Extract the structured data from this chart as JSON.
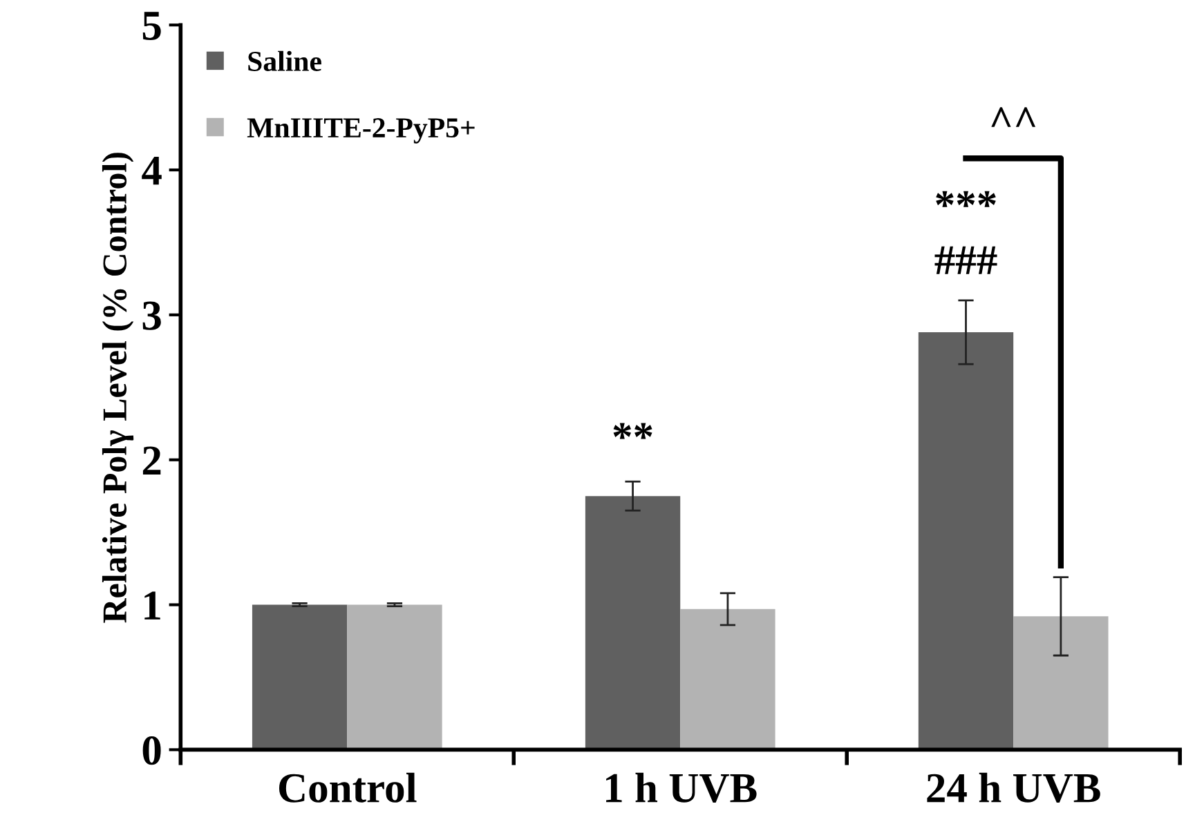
{
  "chart_data": {
    "type": "bar",
    "ylabel": "Relative Polγ Level (% Control)",
    "categories": [
      "Control",
      "1 h UVB",
      "24 h UVB"
    ],
    "series": [
      {
        "name": "Saline",
        "color": "#606060",
        "values": [
          1.0,
          1.75,
          2.88
        ],
        "errors": [
          0.01,
          0.1,
          0.22
        ]
      },
      {
        "name": "MnIIITE-2-PyP5+",
        "color": "#b3b3b3",
        "values": [
          1.0,
          0.97,
          0.92
        ],
        "errors": [
          0.01,
          0.11,
          0.27
        ]
      }
    ],
    "ylim": [
      0,
      5
    ],
    "yticks": [
      0,
      1,
      2,
      3,
      4,
      5
    ],
    "grid": false,
    "legend": "top left",
    "annotations": [
      "**",
      "###",
      "***",
      "^^"
    ]
  }
}
